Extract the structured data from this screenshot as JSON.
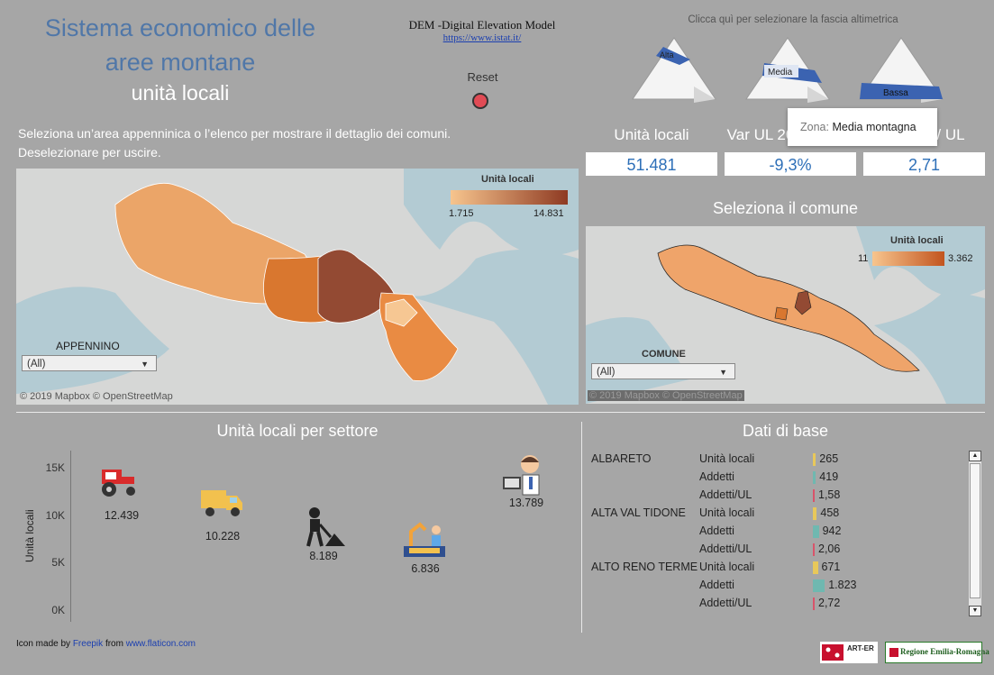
{
  "header": {
    "title_line1": "Sistema economico delle",
    "title_line2": "aree montane",
    "subtitle": "unità locali",
    "dem_title": "DEM -Digital Elevation Model",
    "dem_link": "https://www.istat.it/",
    "reset_label": "Reset"
  },
  "altimetry": {
    "hint": "Clicca quì per selezionare la fascia altimetrica",
    "options": [
      "Alta",
      "Media",
      "Bassa"
    ],
    "accent": "#3b63b1",
    "tooltip_key": "Zona:",
    "tooltip_value": "Media montagna"
  },
  "instructions": {
    "line1": "Seleziona un’area appenninica o l’elenco per mostrare il dettaglio dei comuni.",
    "line2": "Deselezionare per uscire."
  },
  "kpis": [
    {
      "label": "Unità locali",
      "value": "51.481"
    },
    {
      "label": "Var UL 20",
      "value": "-9,3%"
    },
    {
      "label": "/ UL",
      "value": "2,71"
    }
  ],
  "map_left": {
    "legend_title": "Unità locali",
    "legend_min": "1.715",
    "legend_max": "14.831",
    "filter_label": "APPENNINO",
    "filter_value": "(All)",
    "attribution": "© 2019 Mapbox  © OpenStreetMap"
  },
  "map_right": {
    "title": "Seleziona il comune",
    "legend_title": "Unità locali",
    "legend_min": "11",
    "legend_max": "3.362",
    "filter_label": "COMUNE",
    "filter_value": "(All)",
    "attribution": "© 2019 Mapbox  © OpenStreetMap"
  },
  "sector_chart": {
    "title": "Unità locali per settore",
    "ylabel": "Unità locali",
    "ticks": [
      "15K",
      "10K",
      "5K",
      "0K"
    ],
    "sectors": [
      {
        "icon": "tractor-icon",
        "value": 12439,
        "label": "12.439"
      },
      {
        "icon": "truck-icon",
        "value": 10228,
        "label": "10.228"
      },
      {
        "icon": "construction-worker-icon",
        "value": 8189,
        "label": "8.189"
      },
      {
        "icon": "factory-robot-icon",
        "value": 6836,
        "label": "6.836"
      },
      {
        "icon": "office-worker-icon",
        "value": 13789,
        "label": "13.789"
      }
    ]
  },
  "dati": {
    "title": "Dati di base",
    "rows": [
      {
        "comune": "ALBARETO",
        "metric": "Unità locali",
        "value": "265",
        "fill": 0.03,
        "color": "#e8c85a"
      },
      {
        "comune": "",
        "metric": "Addetti",
        "value": "419",
        "fill": 0.03,
        "color": "#6fb8b0"
      },
      {
        "comune": "",
        "metric": "Addetti/UL",
        "value": "1,58",
        "fill": 0.01,
        "color": "#d9536a"
      },
      {
        "comune": "ALTA VAL TIDONE",
        "metric": "Unità locali",
        "value": "458",
        "fill": 0.04,
        "color": "#e8c85a"
      },
      {
        "comune": "",
        "metric": "Addetti",
        "value": "942",
        "fill": 0.06,
        "color": "#6fb8b0"
      },
      {
        "comune": "",
        "metric": "Addetti/UL",
        "value": "2,06",
        "fill": 0.01,
        "color": "#d9536a"
      },
      {
        "comune": "ALTO RENO TERME",
        "metric": "Unità locali",
        "value": "671",
        "fill": 0.05,
        "color": "#e8c85a"
      },
      {
        "comune": "",
        "metric": "Addetti",
        "value": "1.823",
        "fill": 0.12,
        "color": "#6fb8b0"
      },
      {
        "comune": "",
        "metric": "Addetti/UL",
        "value": "2,72",
        "fill": 0.01,
        "color": "#d9536a"
      }
    ]
  },
  "footer": {
    "credit_prefix": "Icon made by ",
    "credit_author": "Freepik",
    "credit_mid": " from ",
    "credit_site": "www.flaticon.com",
    "logo1": "ART-ER",
    "logo2": "Regione Emilia-Romagna"
  }
}
